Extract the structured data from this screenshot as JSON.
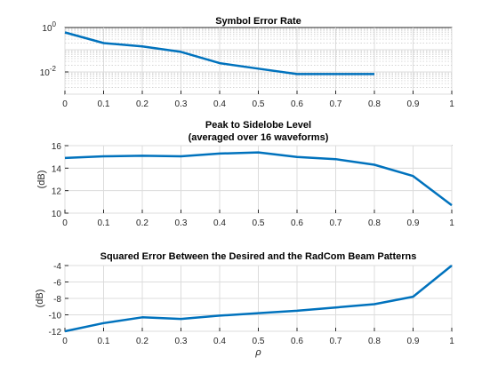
{
  "chart_data": [
    {
      "type": "line",
      "title": "Symbol Error Rate",
      "subtitle": "",
      "xlabel": "",
      "ylabel": "",
      "yscale": "log",
      "xlim": [
        0,
        1
      ],
      "ylim": [
        0.001,
        1
      ],
      "xticks": [
        "0",
        "0.1",
        "0.2",
        "0.3",
        "0.4",
        "0.5",
        "0.6",
        "0.7",
        "0.8",
        "0.9",
        "1"
      ],
      "yticks": [
        {
          "value": 1,
          "base": "10",
          "exp": "0"
        },
        {
          "value": 0.01,
          "base": "10",
          "exp": "-2"
        }
      ],
      "grid": true,
      "minor_grid": true,
      "color": "#0072BD",
      "series": [
        {
          "x": [
            0,
            0.1,
            0.2,
            0.3,
            0.4,
            0.5,
            0.6,
            0.7,
            0.8
          ],
          "y": [
            0.6,
            0.2,
            0.14,
            0.08,
            0.025,
            0.014,
            0.008,
            0.008,
            0.008
          ]
        }
      ]
    },
    {
      "type": "line",
      "title": "Peak to Sidelobe Level",
      "subtitle": "(averaged over 16 waveforms)",
      "xlabel": "",
      "ylabel": "(dB)",
      "yscale": "linear",
      "xlim": [
        0,
        1
      ],
      "ylim": [
        10,
        16
      ],
      "xticks": [
        "0",
        "0.1",
        "0.2",
        "0.3",
        "0.4",
        "0.5",
        "0.6",
        "0.7",
        "0.8",
        "0.9",
        "1"
      ],
      "yticks": [
        "10",
        "12",
        "14",
        "16"
      ],
      "grid": true,
      "color": "#0072BD",
      "series": [
        {
          "x": [
            0,
            0.1,
            0.2,
            0.3,
            0.4,
            0.5,
            0.6,
            0.7,
            0.8,
            0.9,
            1
          ],
          "y": [
            14.9,
            15.05,
            15.1,
            15.05,
            15.3,
            15.4,
            15.0,
            14.8,
            14.3,
            13.3,
            10.7
          ]
        }
      ]
    },
    {
      "type": "line",
      "title": "Squared Error Between the Desired and the RadCom Beam Patterns",
      "subtitle": "",
      "xlabel": "ρ",
      "ylabel": "(dB)",
      "yscale": "linear",
      "xlim": [
        0,
        1
      ],
      "ylim": [
        -12,
        -4
      ],
      "xticks": [
        "0",
        "0.1",
        "0.2",
        "0.3",
        "0.4",
        "0.5",
        "0.6",
        "0.7",
        "0.8",
        "0.9",
        "1"
      ],
      "yticks": [
        "-12",
        "-10",
        "-8",
        "-6",
        "-4"
      ],
      "grid": true,
      "color": "#0072BD",
      "series": [
        {
          "x": [
            0,
            0.1,
            0.2,
            0.3,
            0.4,
            0.5,
            0.6,
            0.7,
            0.8,
            0.9,
            1
          ],
          "y": [
            -12.0,
            -11.0,
            -10.3,
            -10.5,
            -10.1,
            -9.8,
            -9.5,
            -9.1,
            -8.7,
            -7.8,
            -4.0
          ]
        }
      ]
    }
  ]
}
